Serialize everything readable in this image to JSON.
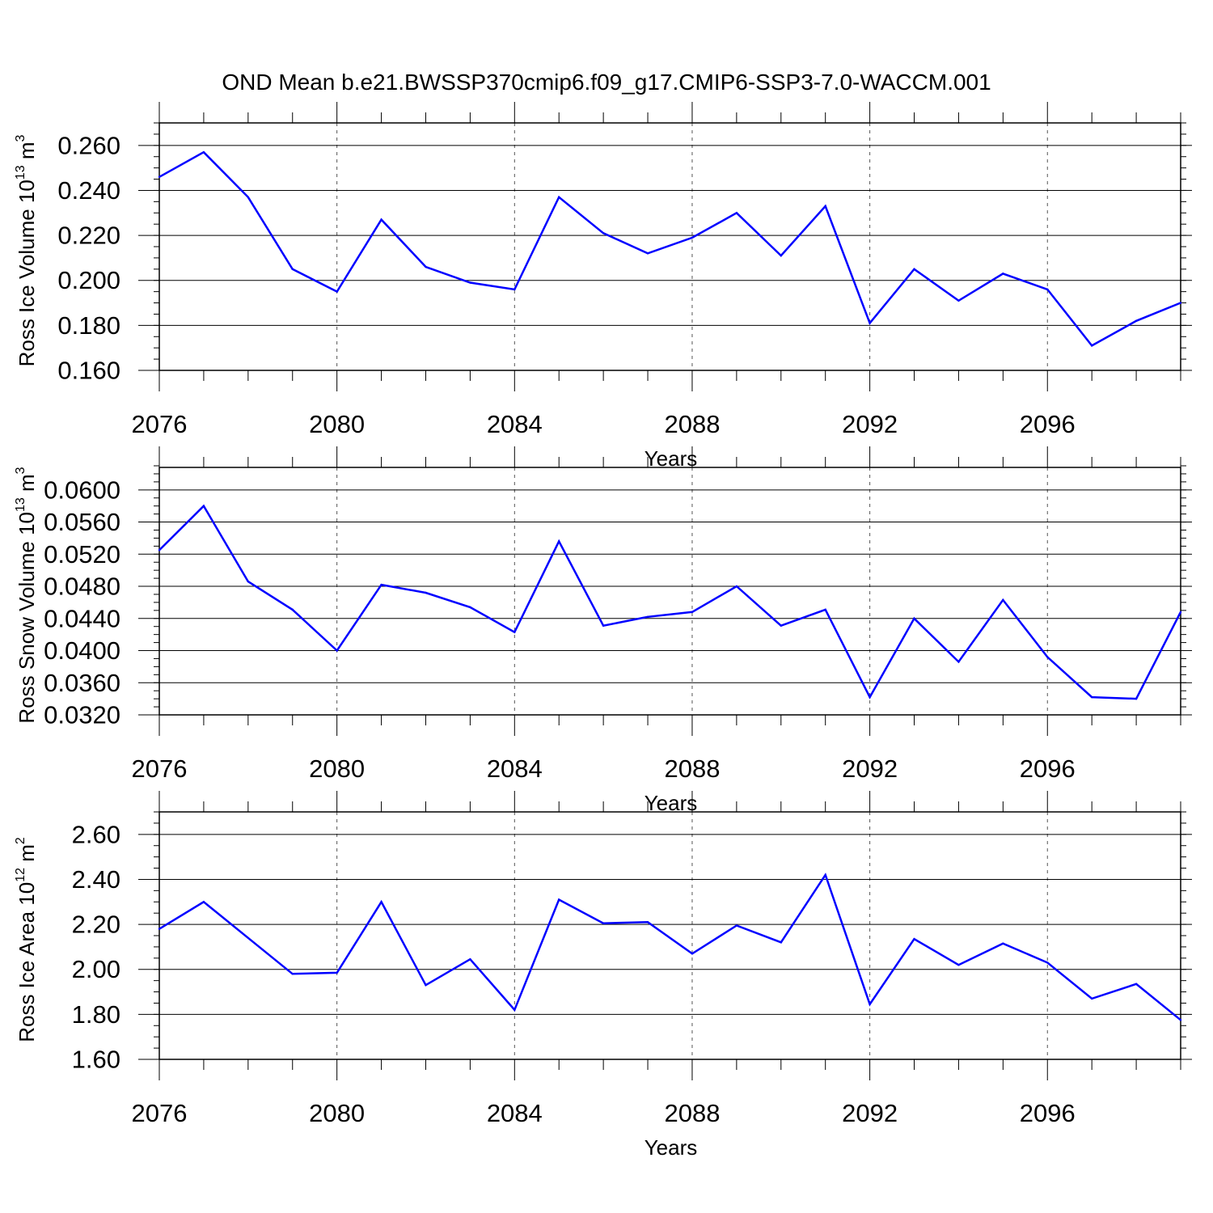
{
  "title": "OND Mean b.e21.BWSSP370cmip6.f09_g17.CMIP6-SSP3-7.0-WACCM.001",
  "chart_data": [
    {
      "type": "line",
      "xlabel": "Years",
      "ylabel": {
        "text": "Ross Ice Volume 10",
        "exp": "13",
        "unit": " m",
        "unit_exp": "3"
      },
      "xlim": [
        2076,
        2099
      ],
      "ylim": [
        0.16,
        0.27
      ],
      "yticks": [
        0.16,
        0.18,
        0.2,
        0.22,
        0.24,
        0.26
      ],
      "ytick_labels": [
        "0.160",
        "0.180",
        "0.200",
        "0.220",
        "0.240",
        "0.260"
      ],
      "yminor_step": 0.005,
      "xticks": [
        2076,
        2080,
        2084,
        2088,
        2092,
        2096
      ],
      "xtick_labels": [
        "2076",
        "2080",
        "2084",
        "2088",
        "2092",
        "2096"
      ],
      "vgrid_dashed": true,
      "line_color": "#0000ff",
      "x": [
        2076,
        2077,
        2078,
        2079,
        2080,
        2081,
        2082,
        2083,
        2084,
        2085,
        2086,
        2087,
        2088,
        2089,
        2090,
        2091,
        2092,
        2093,
        2094,
        2095,
        2096,
        2097,
        2098,
        2099
      ],
      "values": [
        0.246,
        0.257,
        0.237,
        0.205,
        0.195,
        0.227,
        0.206,
        0.199,
        0.196,
        0.237,
        0.221,
        0.212,
        0.219,
        0.23,
        0.211,
        0.233,
        0.181,
        0.205,
        0.191,
        0.203,
        0.196,
        0.171,
        0.182,
        0.19
      ]
    },
    {
      "type": "line",
      "xlabel": "Years",
      "ylabel": {
        "text": "Ross Snow Volume 10",
        "exp": "13",
        "unit": " m",
        "unit_exp": "3"
      },
      "xlim": [
        2076,
        2099
      ],
      "ylim": [
        0.032,
        0.0628
      ],
      "yticks": [
        0.032,
        0.036,
        0.04,
        0.044,
        0.048,
        0.052,
        0.056,
        0.06
      ],
      "ytick_labels": [
        "0.0320",
        "0.0360",
        "0.0400",
        "0.0440",
        "0.0480",
        "0.0520",
        "0.0560",
        "0.0600"
      ],
      "yminor_step": 0.001,
      "xticks": [
        2076,
        2080,
        2084,
        2088,
        2092,
        2096
      ],
      "xtick_labels": [
        "2076",
        "2080",
        "2084",
        "2088",
        "2092",
        "2096"
      ],
      "vgrid_dashed": true,
      "line_color": "#0000ff",
      "x": [
        2076,
        2077,
        2078,
        2079,
        2080,
        2081,
        2082,
        2083,
        2084,
        2085,
        2086,
        2087,
        2088,
        2089,
        2090,
        2091,
        2092,
        2093,
        2094,
        2095,
        2096,
        2097,
        2098,
        2099
      ],
      "values": [
        0.0525,
        0.058,
        0.0486,
        0.0451,
        0.04,
        0.0482,
        0.0472,
        0.0454,
        0.0423,
        0.0536,
        0.0431,
        0.0442,
        0.0448,
        0.048,
        0.0431,
        0.0451,
        0.0342,
        0.044,
        0.0386,
        0.0463,
        0.0392,
        0.0342,
        0.034,
        0.0448
      ]
    },
    {
      "type": "line",
      "xlabel": "Years",
      "ylabel": {
        "text": "Ross Ice Area 10",
        "exp": "12",
        "unit": " m",
        "unit_exp": "2"
      },
      "xlim": [
        2076,
        2099
      ],
      "ylim": [
        1.6,
        2.7
      ],
      "yticks": [
        1.6,
        1.8,
        2.0,
        2.2,
        2.4,
        2.6
      ],
      "ytick_labels": [
        "1.60",
        "1.80",
        "2.00",
        "2.20",
        "2.40",
        "2.60"
      ],
      "yminor_step": 0.05,
      "xticks": [
        2076,
        2080,
        2084,
        2088,
        2092,
        2096
      ],
      "xtick_labels": [
        "2076",
        "2080",
        "2084",
        "2088",
        "2092",
        "2096"
      ],
      "vgrid_dashed": true,
      "line_color": "#0000ff",
      "x": [
        2076,
        2077,
        2078,
        2079,
        2080,
        2081,
        2082,
        2083,
        2084,
        2085,
        2086,
        2087,
        2088,
        2089,
        2090,
        2091,
        2092,
        2093,
        2094,
        2095,
        2096,
        2097,
        2098,
        2099
      ],
      "values": [
        2.18,
        2.3,
        2.14,
        1.98,
        1.985,
        2.3,
        1.93,
        2.045,
        1.82,
        2.31,
        2.205,
        2.21,
        2.07,
        2.195,
        2.12,
        2.42,
        1.845,
        2.135,
        2.02,
        2.115,
        2.03,
        1.87,
        1.935,
        1.775
      ]
    }
  ]
}
